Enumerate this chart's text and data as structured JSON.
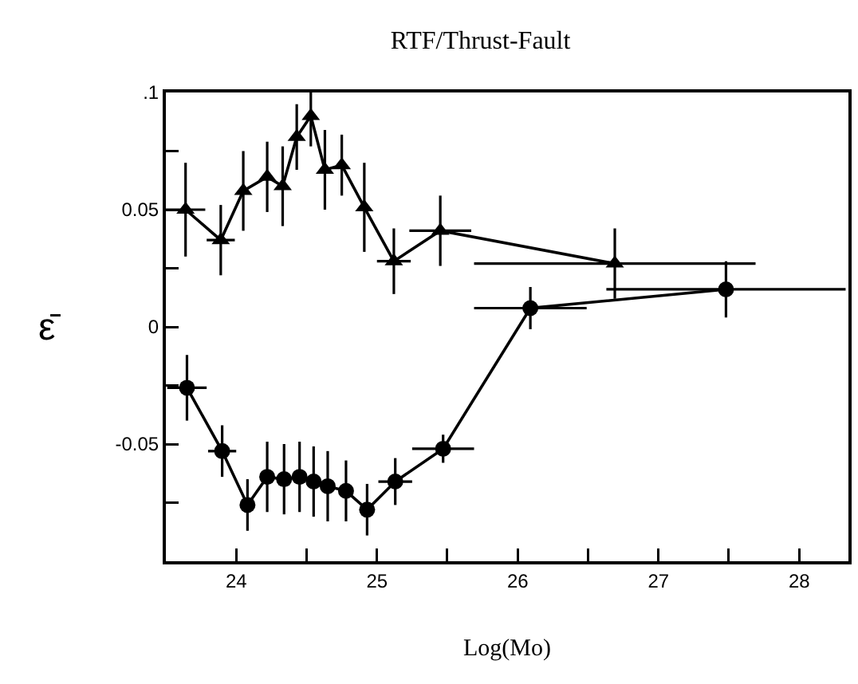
{
  "chart_data": {
    "type": "line",
    "title": "RTF/Thrust-Fault",
    "xlabel": "Log(Mo)",
    "ylabel": "ε̄",
    "xlim": [
      23.5,
      28.35
    ],
    "ylim": [
      -0.1,
      0.1
    ],
    "xticks": [
      24,
      {
        "value": 24.5,
        "label": null
      },
      25,
      {
        "value": 25.5,
        "label": null
      },
      26,
      {
        "value": 26.5,
        "label": null
      },
      27,
      {
        "value": 27.5,
        "label": null
      },
      28
    ],
    "yticks": [
      {
        "value": -0.1,
        "label": null
      },
      {
        "value": -0.075,
        "label": null
      },
      -0.05,
      {
        "value": -0.025,
        "label": null
      },
      0,
      {
        "value": 0.025,
        "label": null
      },
      0.05,
      {
        "value": 0.075,
        "label": null
      },
      {
        "value": 0.1,
        "label": ".1"
      }
    ],
    "grid": false,
    "line_style": "solid",
    "series": [
      {
        "color": "#000000",
        "marker": "triangle",
        "x": [
          23.64,
          23.89,
          24.05,
          24.22,
          24.33,
          24.43,
          24.53,
          24.63,
          24.75,
          24.91,
          25.12,
          25.45,
          26.69
        ],
        "values": [
          0.05,
          0.037,
          0.058,
          0.064,
          0.06,
          0.081,
          0.09,
          0.067,
          0.069,
          0.051,
          0.028,
          0.041,
          0.027
        ],
        "errors": [
          0.02,
          0.015,
          0.017,
          0.015,
          0.017,
          0.014,
          0.013,
          0.017,
          0.013,
          0.019,
          0.014,
          0.015,
          0.015
        ],
        "xerrors": [
          0.14,
          0.1,
          null,
          null,
          null,
          null,
          null,
          null,
          null,
          null,
          0.12,
          0.22,
          1.0
        ]
      },
      {
        "color": "#000000",
        "marker": "circle",
        "x": [
          23.65,
          23.9,
          24.08,
          24.22,
          24.34,
          24.45,
          24.55,
          24.65,
          24.78,
          24.93,
          25.13,
          25.47,
          26.09,
          27.48
        ],
        "values": [
          -0.026,
          -0.053,
          -0.076,
          -0.064,
          -0.065,
          -0.064,
          -0.066,
          -0.068,
          -0.07,
          -0.078,
          -0.066,
          -0.052,
          0.008,
          0.016
        ],
        "errors": [
          0.014,
          0.011,
          0.011,
          0.015,
          0.015,
          0.015,
          0.015,
          0.015,
          0.013,
          0.011,
          0.01,
          0.006,
          0.009,
          0.012
        ],
        "xerrors": [
          0.14,
          0.1,
          null,
          null,
          null,
          null,
          null,
          null,
          null,
          null,
          0.12,
          0.22,
          0.4,
          0.85
        ]
      }
    ]
  }
}
